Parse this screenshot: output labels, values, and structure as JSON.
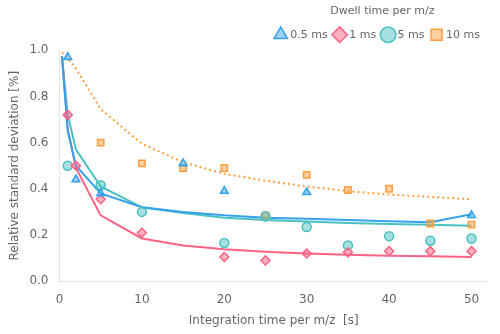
{
  "chart_data": {
    "type": "line",
    "xlabel": "Integration time per m/z  [s]",
    "ylabel": "Relative standard deviation [%]",
    "legend_title": "Dwell time per m/z",
    "legend": "upper right",
    "grid": false,
    "xlim": [
      0,
      52
    ],
    "xticks": [
      0,
      10,
      20,
      30,
      40,
      50
    ],
    "ylim": [
      0.0,
      1.0
    ],
    "yticks": [
      {
        "value": 0.0,
        "label": "0.0"
      },
      0.2,
      0.4,
      0.6,
      0.8,
      {
        "value": 1.0,
        "label": "1.0"
      }
    ],
    "series": [
      {
        "name": "0.5 ms",
        "marker": "triangle",
        "line_style": "solid",
        "x": [
          1,
          2,
          5,
          15,
          20,
          30,
          50
        ],
        "values": [
          0.97,
          0.44,
          0.38,
          0.51,
          0.39,
          0.385,
          0.285
        ],
        "curve_x": [
          0.3,
          1,
          2,
          5,
          10,
          15,
          20,
          25,
          30,
          35,
          40,
          45,
          50
        ],
        "curve_values": [
          0.975,
          0.65,
          0.5,
          0.38,
          0.32,
          0.3,
          0.285,
          0.275,
          0.27,
          0.265,
          0.26,
          0.255,
          0.29
        ]
      },
      {
        "name": "1 ms",
        "marker": "diamond",
        "line_style": "solid",
        "x": [
          1,
          2,
          5,
          10,
          20,
          25,
          30,
          35,
          40,
          45,
          50
        ],
        "values": [
          0.72,
          0.5,
          0.355,
          0.21,
          0.105,
          0.09,
          0.12,
          0.125,
          0.13,
          0.13,
          0.13
        ],
        "curve_x": [
          0.3,
          1,
          2,
          5,
          10,
          15,
          20,
          25,
          30,
          35,
          40,
          45,
          50
        ],
        "curve_values": [
          0.975,
          0.66,
          0.49,
          0.285,
          0.185,
          0.155,
          0.138,
          0.128,
          0.12,
          0.115,
          0.11,
          0.108,
          0.105
        ]
      },
      {
        "name": "5 ms",
        "marker": "circle",
        "line_style": "solid",
        "x": [
          1,
          5,
          10,
          20,
          25,
          30,
          35,
          40,
          45,
          50
        ],
        "values": [
          0.5,
          0.415,
          0.3,
          0.165,
          0.28,
          0.235,
          0.155,
          0.195,
          0.175,
          0.185
        ],
        "curve_x": [
          0.3,
          1,
          2,
          5,
          10,
          15,
          20,
          25,
          30,
          35,
          40,
          45,
          50
        ],
        "curve_values": [
          0.975,
          0.72,
          0.57,
          0.41,
          0.32,
          0.295,
          0.275,
          0.265,
          0.258,
          0.252,
          0.248,
          0.244,
          0.24
        ]
      },
      {
        "name": "10 ms",
        "marker": "square",
        "line_style": "dotted",
        "x": [
          5,
          10,
          15,
          20,
          25,
          30,
          35,
          40,
          45,
          50
        ],
        "values": [
          0.6,
          0.51,
          0.49,
          0.49,
          0.285,
          0.46,
          0.395,
          0.4,
          0.25,
          0.245
        ],
        "curve_x": [
          0.3,
          1,
          2,
          5,
          10,
          15,
          20,
          25,
          30,
          35,
          40,
          45,
          50
        ],
        "curve_values": [
          0.99,
          0.965,
          0.92,
          0.745,
          0.595,
          0.515,
          0.465,
          0.435,
          0.41,
          0.39,
          0.375,
          0.365,
          0.355
        ]
      }
    ]
  }
}
